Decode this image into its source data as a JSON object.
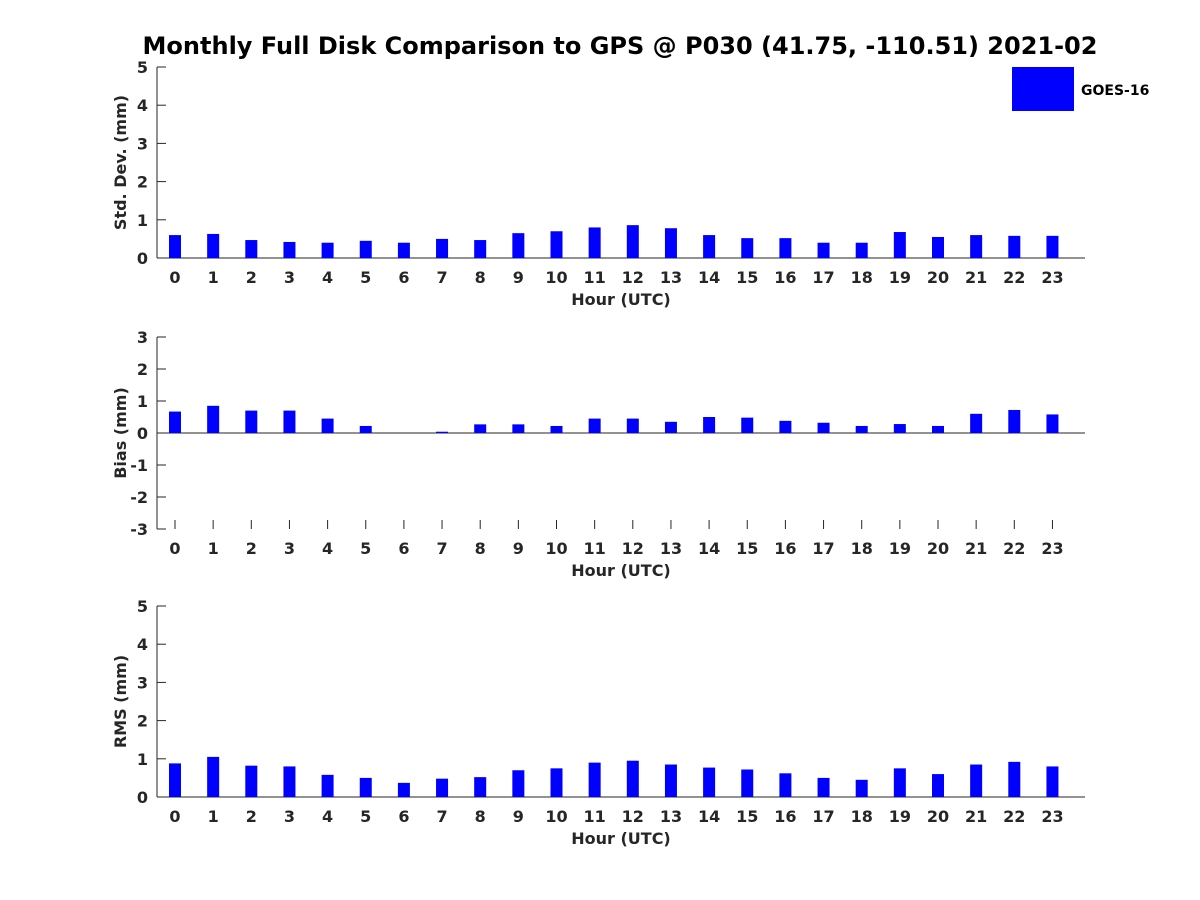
{
  "figure": {
    "title": "Monthly Full Disk Comparison to GPS @ P030 (41.75, -110.51) 2021-02"
  },
  "legend": {
    "label": "GOES-16",
    "color": "#0000ff",
    "placement": "top-right"
  },
  "chart_data": [
    {
      "type": "bar",
      "name": "std-dev",
      "xlabel": "Hour (UTC)",
      "ylabel": "Std. Dev. (mm)",
      "ylim": [
        0,
        5
      ],
      "yticks": [
        0,
        1,
        2,
        3,
        4,
        5
      ],
      "grid": false,
      "categories": [
        "0",
        "1",
        "2",
        "3",
        "4",
        "5",
        "6",
        "7",
        "8",
        "9",
        "10",
        "11",
        "12",
        "13",
        "14",
        "15",
        "16",
        "17",
        "18",
        "19",
        "20",
        "21",
        "22",
        "23"
      ],
      "series": [
        {
          "name": "GOES-16",
          "color": "#0000ff",
          "values": [
            0.6,
            0.63,
            0.47,
            0.42,
            0.4,
            0.45,
            0.4,
            0.5,
            0.47,
            0.65,
            0.7,
            0.8,
            0.86,
            0.78,
            0.6,
            0.52,
            0.52,
            0.4,
            0.4,
            0.68,
            0.55,
            0.6,
            0.58,
            0.58
          ]
        }
      ]
    },
    {
      "type": "bar",
      "name": "bias",
      "xlabel": "Hour (UTC)",
      "ylabel": "Bias (mm)",
      "ylim": [
        -3,
        3
      ],
      "yticks": [
        -3,
        -2,
        -1,
        0,
        1,
        2,
        3
      ],
      "grid": false,
      "categories": [
        "0",
        "1",
        "2",
        "3",
        "4",
        "5",
        "6",
        "7",
        "8",
        "9",
        "10",
        "11",
        "12",
        "13",
        "14",
        "15",
        "16",
        "17",
        "18",
        "19",
        "20",
        "21",
        "22",
        "23"
      ],
      "series": [
        {
          "name": "GOES-16",
          "color": "#0000ff",
          "values": [
            0.67,
            0.85,
            0.7,
            0.7,
            0.45,
            0.22,
            0.0,
            0.04,
            0.27,
            0.27,
            0.22,
            0.45,
            0.45,
            0.35,
            0.5,
            0.48,
            0.38,
            0.32,
            0.22,
            0.28,
            0.22,
            0.6,
            0.72,
            0.58
          ]
        }
      ]
    },
    {
      "type": "bar",
      "name": "rms",
      "xlabel": "Hour (UTC)",
      "ylabel": "RMS (mm)",
      "ylim": [
        0,
        5
      ],
      "yticks": [
        0,
        1,
        2,
        3,
        4,
        5
      ],
      "grid": false,
      "categories": [
        "0",
        "1",
        "2",
        "3",
        "4",
        "5",
        "6",
        "7",
        "8",
        "9",
        "10",
        "11",
        "12",
        "13",
        "14",
        "15",
        "16",
        "17",
        "18",
        "19",
        "20",
        "21",
        "22",
        "23"
      ],
      "series": [
        {
          "name": "GOES-16",
          "color": "#0000ff",
          "values": [
            0.88,
            1.05,
            0.82,
            0.8,
            0.58,
            0.5,
            0.37,
            0.48,
            0.52,
            0.7,
            0.75,
            0.9,
            0.95,
            0.85,
            0.77,
            0.72,
            0.62,
            0.5,
            0.45,
            0.75,
            0.6,
            0.85,
            0.92,
            0.8
          ]
        }
      ]
    }
  ]
}
